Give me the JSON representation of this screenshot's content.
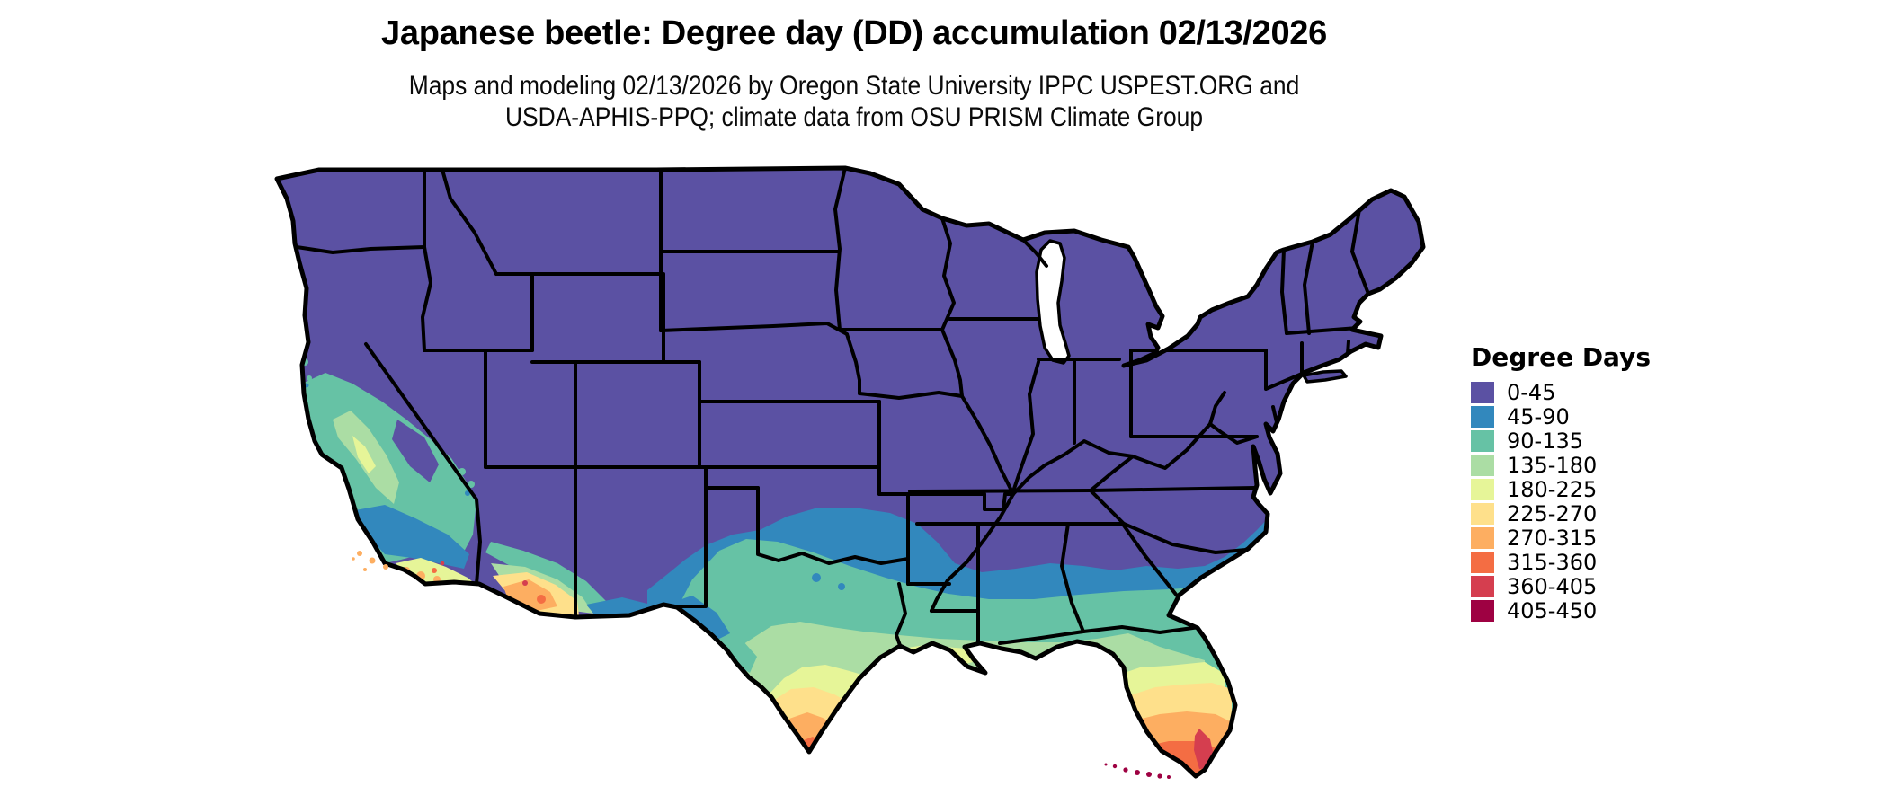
{
  "header": {
    "title": "Japanese beetle: Degree day (DD) accumulation 02/13/2026",
    "subtitle_line1": "Maps and modeling 02/13/2026 by Oregon State University IPPC USPEST.ORG and",
    "subtitle_line2": "USDA-APHIS-PPQ; climate data from OSU PRISM Climate Group"
  },
  "legend": {
    "title": "Degree Days",
    "bins": [
      {
        "label": "0-45",
        "color": "#5b51a3"
      },
      {
        "label": "45-90",
        "color": "#3288bd"
      },
      {
        "label": "90-135",
        "color": "#66c2a5"
      },
      {
        "label": "135-180",
        "color": "#abdda4"
      },
      {
        "label": "180-225",
        "color": "#e6f598"
      },
      {
        "label": "225-270",
        "color": "#fee08b"
      },
      {
        "label": "270-315",
        "color": "#fdae61"
      },
      {
        "label": "315-360",
        "color": "#f46d43"
      },
      {
        "label": "360-405",
        "color": "#d53e4f"
      },
      {
        "label": "405-450",
        "color": "#9e0142"
      }
    ]
  },
  "map": {
    "region": "Continental United States",
    "ink": "#000000",
    "water": "#ffffff"
  }
}
